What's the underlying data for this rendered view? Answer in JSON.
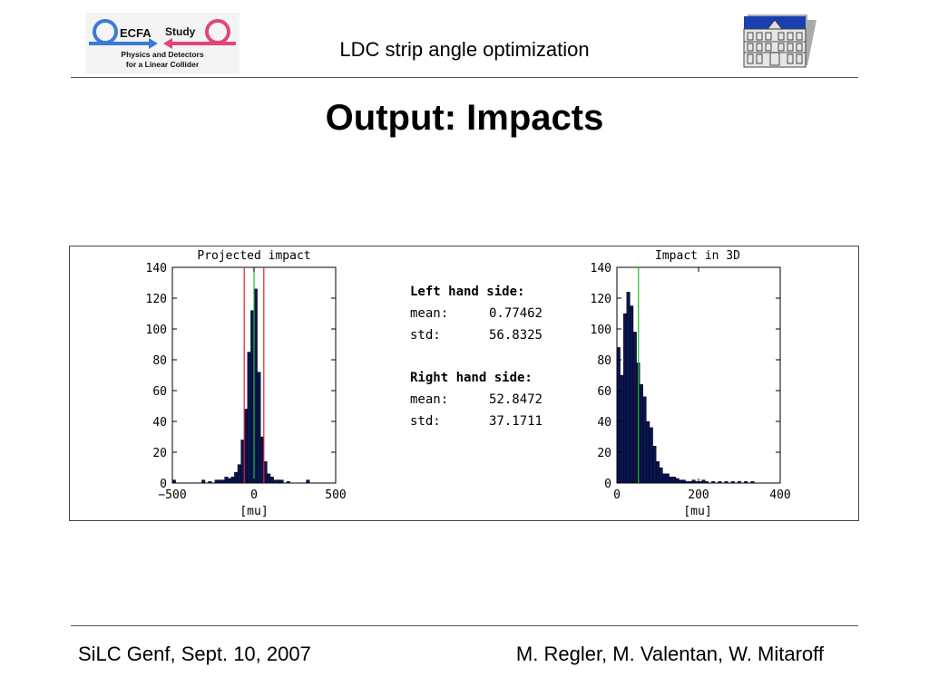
{
  "header": {
    "title": "LDC strip angle optimization",
    "logo_left": {
      "main": "ECFA",
      "study": "Study",
      "line1": "Physics and Detectors",
      "line2": "for a Linear Collider"
    },
    "logo_right_icon": "building-icon"
  },
  "slide_title": "Output: Impacts",
  "stats": {
    "left_heading": "Left hand side:",
    "left_mean_label": "mean:",
    "left_mean": "0.77462",
    "left_std_label": "std:",
    "left_std": "56.8325",
    "right_heading": "Right hand side:",
    "right_mean_label": "mean:",
    "right_mean": "52.8472",
    "right_std_label": "std:",
    "right_std": "37.1711"
  },
  "footer": {
    "left": "SiLC Genf, Sept. 10, 2007",
    "right": "M. Regler, M. Valentan, W. Mitaroff"
  },
  "colors": {
    "bar_fill": "#0a1450",
    "green_line": "#22bb22",
    "red_line": "#dd2222",
    "logo_blue": "#3a7bd5",
    "logo_pink": "#e0457b"
  },
  "chart_data": [
    {
      "type": "bar",
      "title": "Projected impact",
      "xlabel": "[mu]",
      "ylabel": "",
      "xlim": [
        -500,
        500
      ],
      "ylim": [
        0,
        140
      ],
      "xticks": [
        "−500",
        "0",
        "500"
      ],
      "yticks": [
        "0",
        "20",
        "40",
        "60",
        "80",
        "100",
        "120",
        "140"
      ],
      "bin_width": 20,
      "bin_centers": [
        -490,
        -310,
        -270,
        -230,
        -210,
        -190,
        -170,
        -150,
        -130,
        -110,
        -90,
        -70,
        -50,
        -30,
        -10,
        10,
        30,
        50,
        70,
        90,
        110,
        130,
        150,
        170,
        210,
        330
      ],
      "values": [
        2,
        2,
        1,
        2,
        2,
        2,
        4,
        3,
        4,
        7,
        12,
        28,
        48,
        85,
        112,
        126,
        72,
        30,
        14,
        6,
        4,
        2,
        2,
        2,
        1,
        2
      ],
      "vlines": [
        {
          "x": -60,
          "color": "red"
        },
        {
          "x": 0,
          "color": "green"
        },
        {
          "x": 60,
          "color": "red"
        }
      ]
    },
    {
      "type": "bar",
      "title": "Impact in 3D",
      "xlabel": "[mu]",
      "ylabel": "",
      "xlim": [
        0,
        400
      ],
      "ylim": [
        0,
        140
      ],
      "xticks": [
        "0",
        "200",
        "400"
      ],
      "yticks": [
        "0",
        "20",
        "40",
        "60",
        "80",
        "100",
        "120",
        "140"
      ],
      "bin_width": 8,
      "bin_centers": [
        4,
        12,
        20,
        28,
        36,
        44,
        52,
        60,
        68,
        76,
        84,
        92,
        100,
        108,
        116,
        124,
        132,
        140,
        148,
        156,
        164,
        172,
        180,
        188,
        196,
        204,
        212,
        220,
        236,
        252,
        268,
        284,
        300,
        316,
        332
      ],
      "values": [
        88,
        70,
        110,
        124,
        115,
        98,
        78,
        64,
        56,
        40,
        36,
        24,
        14,
        10,
        6,
        6,
        4,
        4,
        3,
        2,
        2,
        1,
        1,
        2,
        1,
        1,
        2,
        1,
        1,
        1,
        1,
        1,
        1,
        1,
        1
      ],
      "vlines": [
        {
          "x": 52.8,
          "color": "green"
        }
      ]
    }
  ]
}
